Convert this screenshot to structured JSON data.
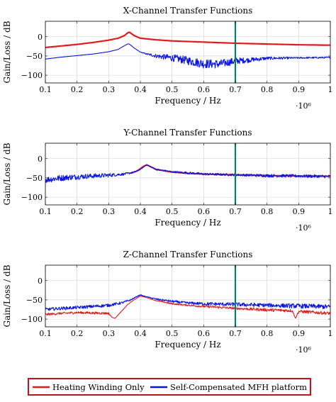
{
  "chart_data": [
    {
      "type": "line",
      "title": "X-Channel Transfer Functions",
      "xlabel": "Frequency / Hz",
      "ylabel": "Gain/Loss / dB",
      "x_multiplier": "·10⁶",
      "xlim": [
        0.1,
        1.0
      ],
      "ylim": [
        -120,
        40
      ],
      "xticks": [
        "0.1",
        "0.2",
        "0.3",
        "0.4",
        "0.5",
        "0.6",
        "0.7",
        "0.8",
        "0.9",
        "1"
      ],
      "yticks": [
        "0",
        "−50",
        "−100"
      ],
      "ytick_values": [
        0,
        -50,
        -100
      ],
      "grid": true,
      "marker_line_x": 0.7,
      "series": [
        {
          "name": "Heating Winding Only",
          "color": "#e31a1c",
          "x": [
            0.1,
            0.15,
            0.2,
            0.25,
            0.3,
            0.33,
            0.35,
            0.36,
            0.365,
            0.38,
            0.4,
            0.45,
            0.5,
            0.6,
            0.7,
            0.8,
            0.9,
            1.0
          ],
          "y": [
            -28,
            -24,
            -20,
            -15,
            -9,
            -4,
            3,
            10,
            12,
            3,
            -4,
            -8,
            -11,
            -14,
            -17,
            -19,
            -21,
            -22
          ]
        },
        {
          "name": "Self-Compensated MFH platform",
          "color": "#0a14e6",
          "x": [
            0.1,
            0.15,
            0.2,
            0.25,
            0.3,
            0.33,
            0.35,
            0.36,
            0.365,
            0.38,
            0.4,
            0.42,
            0.45,
            0.5,
            0.55,
            0.6,
            0.65,
            0.7,
            0.75,
            0.8,
            0.9,
            1.0
          ],
          "y": [
            -58,
            -53,
            -49,
            -45,
            -39,
            -33,
            -23,
            -19,
            -19,
            -29,
            -40,
            -45,
            -50,
            -55,
            -62,
            -70,
            -71,
            -63,
            -60,
            -56,
            -55,
            -54
          ],
          "noise": [
            0,
            0,
            0,
            0,
            0,
            0,
            0,
            0,
            0,
            0,
            0,
            2,
            5,
            9,
            11,
            12,
            11,
            9,
            6,
            4,
            2,
            2
          ]
        }
      ]
    },
    {
      "type": "line",
      "title": "Y-Channel Transfer Functions",
      "xlabel": "Frequency / Hz",
      "ylabel": "Gain/Loss / dB",
      "x_multiplier": "·10⁶",
      "xlim": [
        0.1,
        1.0
      ],
      "ylim": [
        -120,
        40
      ],
      "xticks": [
        "0.1",
        "0.2",
        "0.3",
        "0.4",
        "0.5",
        "0.6",
        "0.7",
        "0.8",
        "0.9",
        "1"
      ],
      "yticks": [
        "0",
        "−50",
        "−100"
      ],
      "ytick_values": [
        0,
        -50,
        -100
      ],
      "grid": true,
      "marker_line_x": 0.7,
      "series": [
        {
          "name": "Heating Winding Only",
          "color": "#e31a1c",
          "x": [
            0.37,
            0.39,
            0.41,
            0.42,
            0.43,
            0.45,
            0.5,
            0.55,
            0.6,
            0.7,
            0.8,
            0.9,
            1.0
          ],
          "y": [
            -38,
            -32,
            -20,
            -16,
            -20,
            -28,
            -35,
            -38,
            -40,
            -42,
            -44,
            -45,
            -46
          ]
        },
        {
          "name": "Self-Compensated MFH platform",
          "color": "#0a14e6",
          "x": [
            0.1,
            0.15,
            0.2,
            0.25,
            0.3,
            0.35,
            0.38,
            0.4,
            0.41,
            0.42,
            0.43,
            0.45,
            0.5,
            0.55,
            0.6,
            0.7,
            0.8,
            0.9,
            1.0
          ],
          "y": [
            -55,
            -50,
            -47,
            -45,
            -43,
            -40,
            -35,
            -28,
            -22,
            -16,
            -20,
            -28,
            -34,
            -37,
            -40,
            -42,
            -44,
            -45,
            -46
          ],
          "noise": [
            8,
            8,
            7,
            6,
            5,
            3,
            2,
            1,
            1,
            1,
            1,
            2,
            2,
            3,
            3,
            3,
            4,
            4,
            4
          ]
        }
      ]
    },
    {
      "type": "line",
      "title": "Z-Channel Transfer Functions",
      "xlabel": "Frequency / Hz",
      "ylabel": "Gain/Loss / dB",
      "x_multiplier": "·10⁶",
      "xlim": [
        0.1,
        1.0
      ],
      "ylim": [
        -120,
        40
      ],
      "xticks": [
        "0.1",
        "0.2",
        "0.3",
        "0.4",
        "0.5",
        "0.6",
        "0.7",
        "0.8",
        "0.9",
        "1"
      ],
      "yticks": [
        "0",
        "−50",
        "−100"
      ],
      "ytick_values": [
        0,
        -50,
        -100
      ],
      "grid": true,
      "marker_line_x": 0.7,
      "series": [
        {
          "name": "Heating Winding Only",
          "color": "#e31a1c",
          "x": [
            0.1,
            0.15,
            0.2,
            0.25,
            0.3,
            0.31,
            0.32,
            0.34,
            0.36,
            0.38,
            0.4,
            0.42,
            0.45,
            0.5,
            0.55,
            0.6,
            0.7,
            0.8,
            0.88,
            0.89,
            0.9,
            1.0
          ],
          "y": [
            -88,
            -85,
            -83,
            -84,
            -85,
            -95,
            -98,
            -80,
            -62,
            -50,
            -40,
            -44,
            -52,
            -60,
            -64,
            -67,
            -72,
            -76,
            -78,
            -98,
            -80,
            -85
          ],
          "noise": [
            3,
            3,
            3,
            3,
            3,
            0,
            0,
            0,
            0,
            0,
            0,
            0,
            1,
            2,
            2,
            3,
            3,
            4,
            4,
            0,
            4,
            4
          ]
        },
        {
          "name": "Self-Compensated MFH platform",
          "color": "#0a14e6",
          "x": [
            0.1,
            0.15,
            0.2,
            0.25,
            0.3,
            0.34,
            0.37,
            0.39,
            0.4,
            0.41,
            0.43,
            0.45,
            0.5,
            0.55,
            0.6,
            0.7,
            0.8,
            0.9,
            1.0
          ],
          "y": [
            -75,
            -72,
            -70,
            -67,
            -64,
            -58,
            -50,
            -41,
            -37,
            -40,
            -44,
            -48,
            -54,
            -58,
            -60,
            -62,
            -64,
            -66,
            -68
          ],
          "noise": [
            4,
            4,
            4,
            4,
            4,
            3,
            2,
            1,
            1,
            1,
            1,
            2,
            3,
            3,
            4,
            5,
            5,
            6,
            6
          ]
        }
      ]
    }
  ],
  "legend": {
    "placement": "bottom",
    "border_color": "#c1121f",
    "items": [
      {
        "label": "Heating Winding Only",
        "color": "#e31a1c"
      },
      {
        "label": "Self-Compensated MFH platform",
        "color": "#0a14e6"
      }
    ]
  },
  "marker_line_color": "#007f6e"
}
